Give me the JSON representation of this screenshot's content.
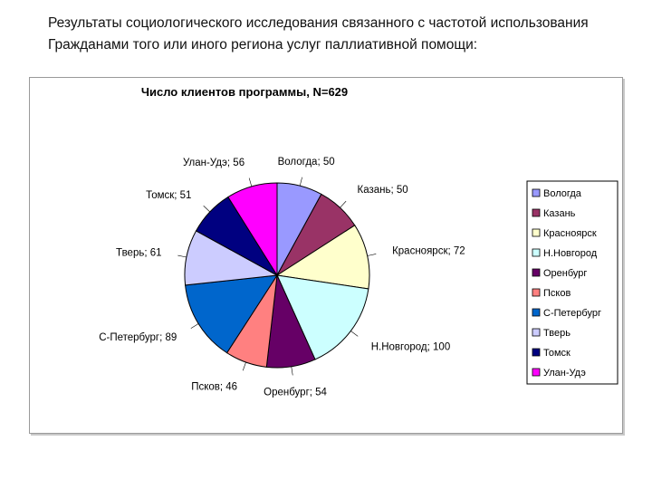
{
  "slide": {
    "title_line1": "Результаты социологического исследования связанного с частотой использования",
    "title_line2": "Гражданами того или иного региона услуг паллиативной помощи:"
  },
  "chart_data": {
    "type": "pie",
    "title": "Число клиентов программы, N=629",
    "legend_position": "right",
    "slices": [
      {
        "label": "Вологда",
        "value": 50,
        "data_label": "Вологда; 50",
        "color": "#9999ff"
      },
      {
        "label": "Казань",
        "value": 50,
        "data_label": "Казань; 50",
        "color": "#993366"
      },
      {
        "label": "Красноярск",
        "value": 72,
        "data_label": "Красноярск; 72",
        "color": "#ffffcc"
      },
      {
        "label": "Н.Новгород",
        "value": 100,
        "data_label": "Н.Новгород; 100",
        "color": "#ccffff"
      },
      {
        "label": "Оренбург",
        "value": 54,
        "data_label": "Оренбург; 54",
        "color": "#660066"
      },
      {
        "label": "Псков",
        "value": 46,
        "data_label": "Псков; 46",
        "color": "#ff8080"
      },
      {
        "label": "С-Петербург",
        "value": 89,
        "data_label": "С-Петербург; 89",
        "color": "#0066cc"
      },
      {
        "label": "Тверь",
        "value": 61,
        "data_label": "Тверь; 61",
        "color": "#ccccff"
      },
      {
        "label": "Томск",
        "value": 51,
        "data_label": "Томск; 51",
        "color": "#000080"
      },
      {
        "label": "Улан-Удэ",
        "value": 56,
        "data_label": "Улан-Удэ; 56",
        "color": "#ff00ff"
      }
    ]
  }
}
